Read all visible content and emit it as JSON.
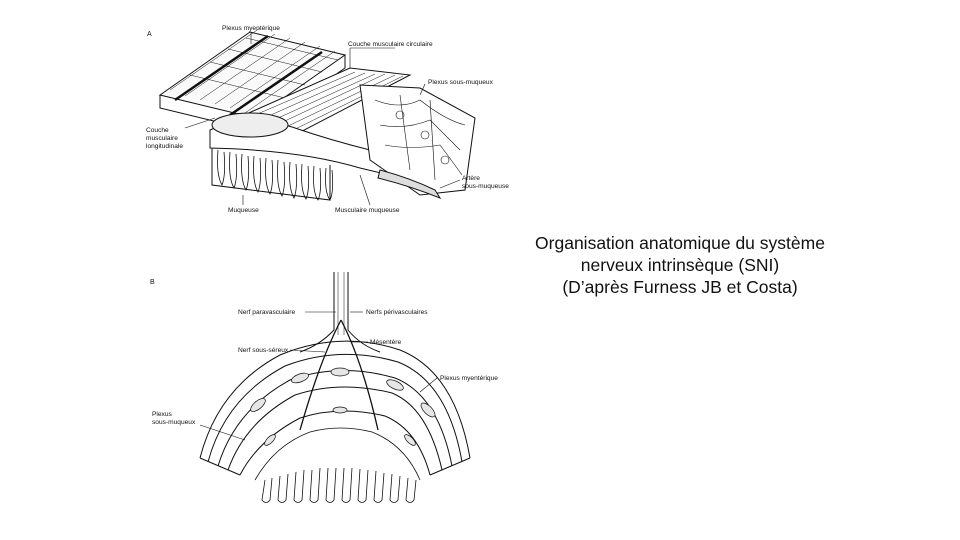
{
  "caption": {
    "line1": "Organisation anatomique du système",
    "line2": "nerveux intrinsèque (SNI)",
    "line3": "(D’après Furness JB et Costa)"
  },
  "figure_a": {
    "panel_label": "A",
    "labels": {
      "plexus_myenterique": "Plexus myentérique",
      "couche_circulaire": "Couche musculaire circulaire",
      "plexus_sous_muqueux": "Plexus sous-muqueux",
      "couche_longitudinale_1": "Couche",
      "couche_longitudinale_2": "musculaire",
      "couche_longitudinale_3": "longitudinale",
      "artere_1": "Artère",
      "artere_2": "sous-muqueuse",
      "muqueuse": "Muqueuse",
      "musculaire_muqueuse": "Musculaire muqueuse"
    }
  },
  "figure_b": {
    "panel_label": "B",
    "labels": {
      "nerf_paravasculaire": "Nerf paravasculaire",
      "nerfs_perivasculaires": "Nerfs périvasculaires",
      "mesentere": "Mésentère",
      "nerf_sous_sereux": "Nerf sous-séreux",
      "plexus_myenterique": "Plexus myentérique",
      "plexus_sous_muqueux_1": "Plexus",
      "plexus_sous_muqueux_2": "sous-muqueux"
    }
  }
}
